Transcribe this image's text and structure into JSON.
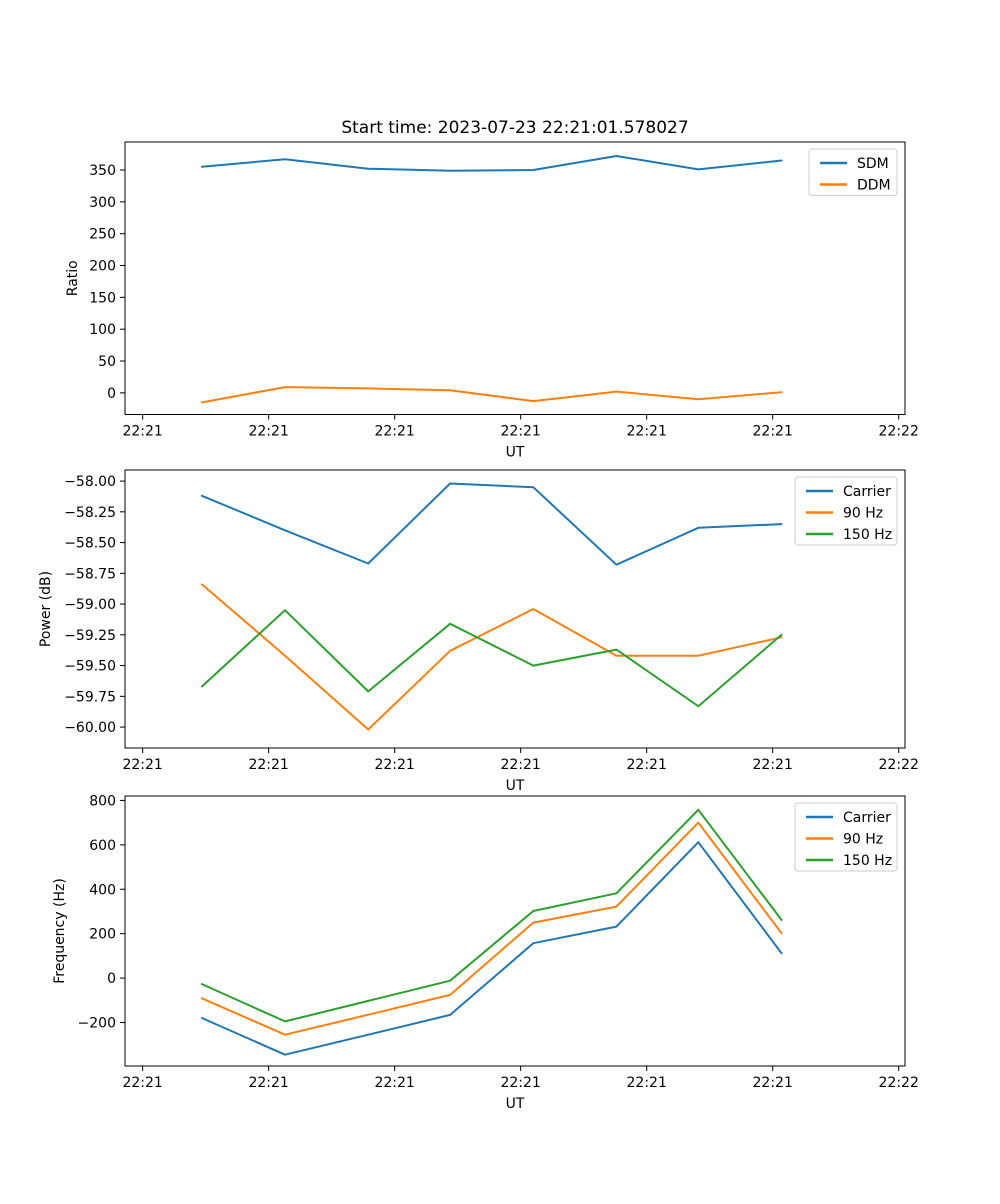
{
  "figure_title": "Start time: 2023-07-23 22:21:01.578027",
  "palette": {
    "blue": "#1f77b4",
    "orange": "#ff7f0e",
    "green": "#2ca02c"
  },
  "chart_data": [
    {
      "id": "ratio",
      "type": "line",
      "title": "Start time: 2023-07-23 22:21:01.578027",
      "xlabel": "UT",
      "ylabel": "Ratio",
      "xlim": [
        -1.4,
        60.5
      ],
      "ylim": [
        -34,
        394
      ],
      "xticks": [
        0,
        10,
        20,
        30,
        40,
        50,
        60
      ],
      "xtick_labels": [
        "22:21",
        "22:21",
        "22:21",
        "22:21",
        "22:21",
        "22:21",
        "22:22"
      ],
      "yticks": [
        0,
        50,
        100,
        150,
        200,
        250,
        300,
        350
      ],
      "ytick_labels": [
        "0",
        "50",
        "100",
        "150",
        "200",
        "250",
        "300",
        "350"
      ],
      "x": [
        4.7,
        11.3,
        17.9,
        24.4,
        31.0,
        37.6,
        44.1,
        50.7
      ],
      "series": [
        {
          "name": "SDM",
          "color": "#1f77b4",
          "values": [
            355,
            367,
            352,
            349,
            350,
            372,
            351,
            365
          ]
        },
        {
          "name": "DDM",
          "color": "#ff7f0e",
          "values": [
            -15,
            9,
            7,
            4,
            -13,
            2,
            -10,
            1
          ]
        }
      ],
      "legend_position": "upper right",
      "grid": false
    },
    {
      "id": "power",
      "type": "line",
      "title": "",
      "xlabel": "UT",
      "ylabel": "Power (dB)",
      "xlim": [
        -1.4,
        60.5
      ],
      "ylim": [
        -60.17,
        -57.91
      ],
      "xticks": [
        0,
        10,
        20,
        30,
        40,
        50,
        60
      ],
      "xtick_labels": [
        "22:21",
        "22:21",
        "22:21",
        "22:21",
        "22:21",
        "22:21",
        "22:22"
      ],
      "yticks": [
        -60.0,
        -59.75,
        -59.5,
        -59.25,
        -59.0,
        -58.75,
        -58.5,
        -58.25,
        -58.0
      ],
      "ytick_labels": [
        "−60.00",
        "−59.75",
        "−59.50",
        "−59.25",
        "−59.00",
        "−58.75",
        "−58.50",
        "−58.25",
        "−58.00"
      ],
      "x": [
        4.7,
        11.3,
        17.9,
        24.4,
        31.0,
        37.6,
        44.1,
        50.7
      ],
      "series": [
        {
          "name": "Carrier",
          "color": "#1f77b4",
          "values": [
            -58.12,
            -58.4,
            -58.67,
            -58.02,
            -58.05,
            -58.68,
            -58.38,
            -58.35
          ]
        },
        {
          "name": "90 Hz",
          "color": "#ff7f0e",
          "values": [
            -58.84,
            -59.42,
            -60.02,
            -59.38,
            -59.04,
            -59.42,
            -59.42,
            -59.27
          ]
        },
        {
          "name": "150 Hz",
          "color": "#2ca02c",
          "values": [
            -59.67,
            -59.05,
            -59.71,
            -59.16,
            -59.5,
            -59.37,
            -59.83,
            -59.25
          ]
        }
      ],
      "legend_position": "upper right",
      "grid": false
    },
    {
      "id": "frequency",
      "type": "line",
      "title": "",
      "xlabel": "UT",
      "ylabel": "Frequency (Hz)",
      "xlim": [
        -1.4,
        60.5
      ],
      "ylim": [
        -396,
        820
      ],
      "xticks": [
        0,
        10,
        20,
        30,
        40,
        50,
        60
      ],
      "xtick_labels": [
        "22:21",
        "22:21",
        "22:21",
        "22:21",
        "22:21",
        "22:21",
        "22:22"
      ],
      "yticks": [
        -200,
        0,
        200,
        400,
        600,
        800
      ],
      "ytick_labels": [
        "−200",
        "0",
        "200",
        "400",
        "600",
        "800"
      ],
      "x": [
        4.7,
        11.3,
        17.9,
        24.4,
        31.0,
        37.6,
        44.1,
        50.7
      ],
      "series": [
        {
          "name": "Carrier",
          "color": "#1f77b4",
          "values": [
            -180,
            -345,
            -255,
            -166,
            157,
            232,
            612,
            112
          ]
        },
        {
          "name": "90 Hz",
          "color": "#ff7f0e",
          "values": [
            -91,
            -255,
            -165,
            -76,
            250,
            322,
            700,
            202
          ]
        },
        {
          "name": "150 Hz",
          "color": "#2ca02c",
          "values": [
            -27,
            -195,
            -103,
            -12,
            302,
            382,
            758,
            262
          ]
        }
      ],
      "legend_position": "upper right",
      "grid": false
    }
  ]
}
